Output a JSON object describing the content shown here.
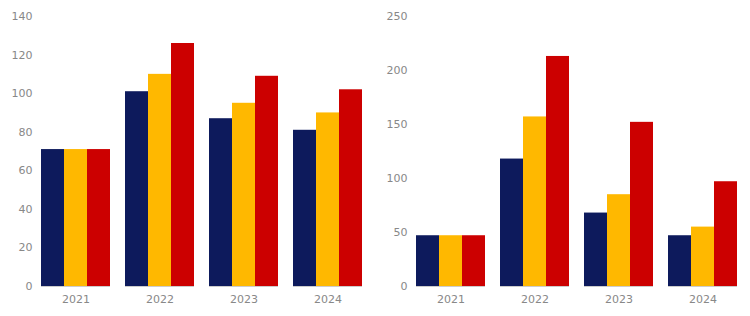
{
  "chart_data": [
    {
      "type": "bar",
      "categories": [
        "2021",
        "2022",
        "2023",
        "2024"
      ],
      "series": [
        {
          "color": "#0D1A5C",
          "values": [
            71,
            101,
            87,
            81
          ]
        },
        {
          "color": "#FFB800",
          "values": [
            71,
            110,
            95,
            90
          ]
        },
        {
          "color": "#CC0000",
          "values": [
            71,
            126,
            109,
            102
          ]
        }
      ],
      "ylim": [
        0,
        140
      ],
      "yticks": [
        0,
        20,
        40,
        60,
        80,
        100,
        120,
        140
      ],
      "grid": false
    },
    {
      "type": "bar",
      "categories": [
        "2021",
        "2022",
        "2023",
        "2024"
      ],
      "series": [
        {
          "color": "#0D1A5C",
          "values": [
            47,
            118,
            68,
            47
          ]
        },
        {
          "color": "#FFB800",
          "values": [
            47,
            157,
            85,
            55
          ]
        },
        {
          "color": "#CC0000",
          "values": [
            47,
            213,
            152,
            97
          ]
        }
      ],
      "ylim": [
        0,
        250
      ],
      "yticks": [
        0,
        50,
        100,
        150,
        200,
        250
      ],
      "grid": false
    }
  ]
}
